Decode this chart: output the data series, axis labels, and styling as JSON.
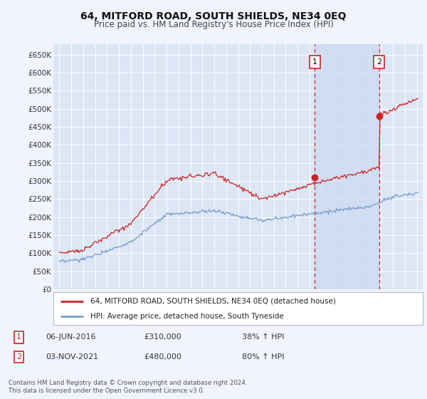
{
  "title": "64, MITFORD ROAD, SOUTH SHIELDS, NE34 0EQ",
  "subtitle": "Price paid vs. HM Land Registry's House Price Index (HPI)",
  "background_color": "#f0f4ff",
  "plot_bg_color": "#dce6f5",
  "grid_color": "#ffffff",
  "hpi_line_color": "#7799cc",
  "price_line_color": "#cc2222",
  "shade_color": "#dae4f5",
  "marker1_x": 2016.43,
  "marker2_x": 2021.84,
  "marker1_price": 310000,
  "marker2_price": 480000,
  "legend_label1": "64, MITFORD ROAD, SOUTH SHIELDS, NE34 0EQ (detached house)",
  "legend_label2": "HPI: Average price, detached house, South Tyneside",
  "footer": "Contains HM Land Registry data © Crown copyright and database right 2024.\nThis data is licensed under the Open Government Licence v3.0.",
  "ylim_max": 680000,
  "xlim_start": 1994.5,
  "xlim_end": 2025.5
}
